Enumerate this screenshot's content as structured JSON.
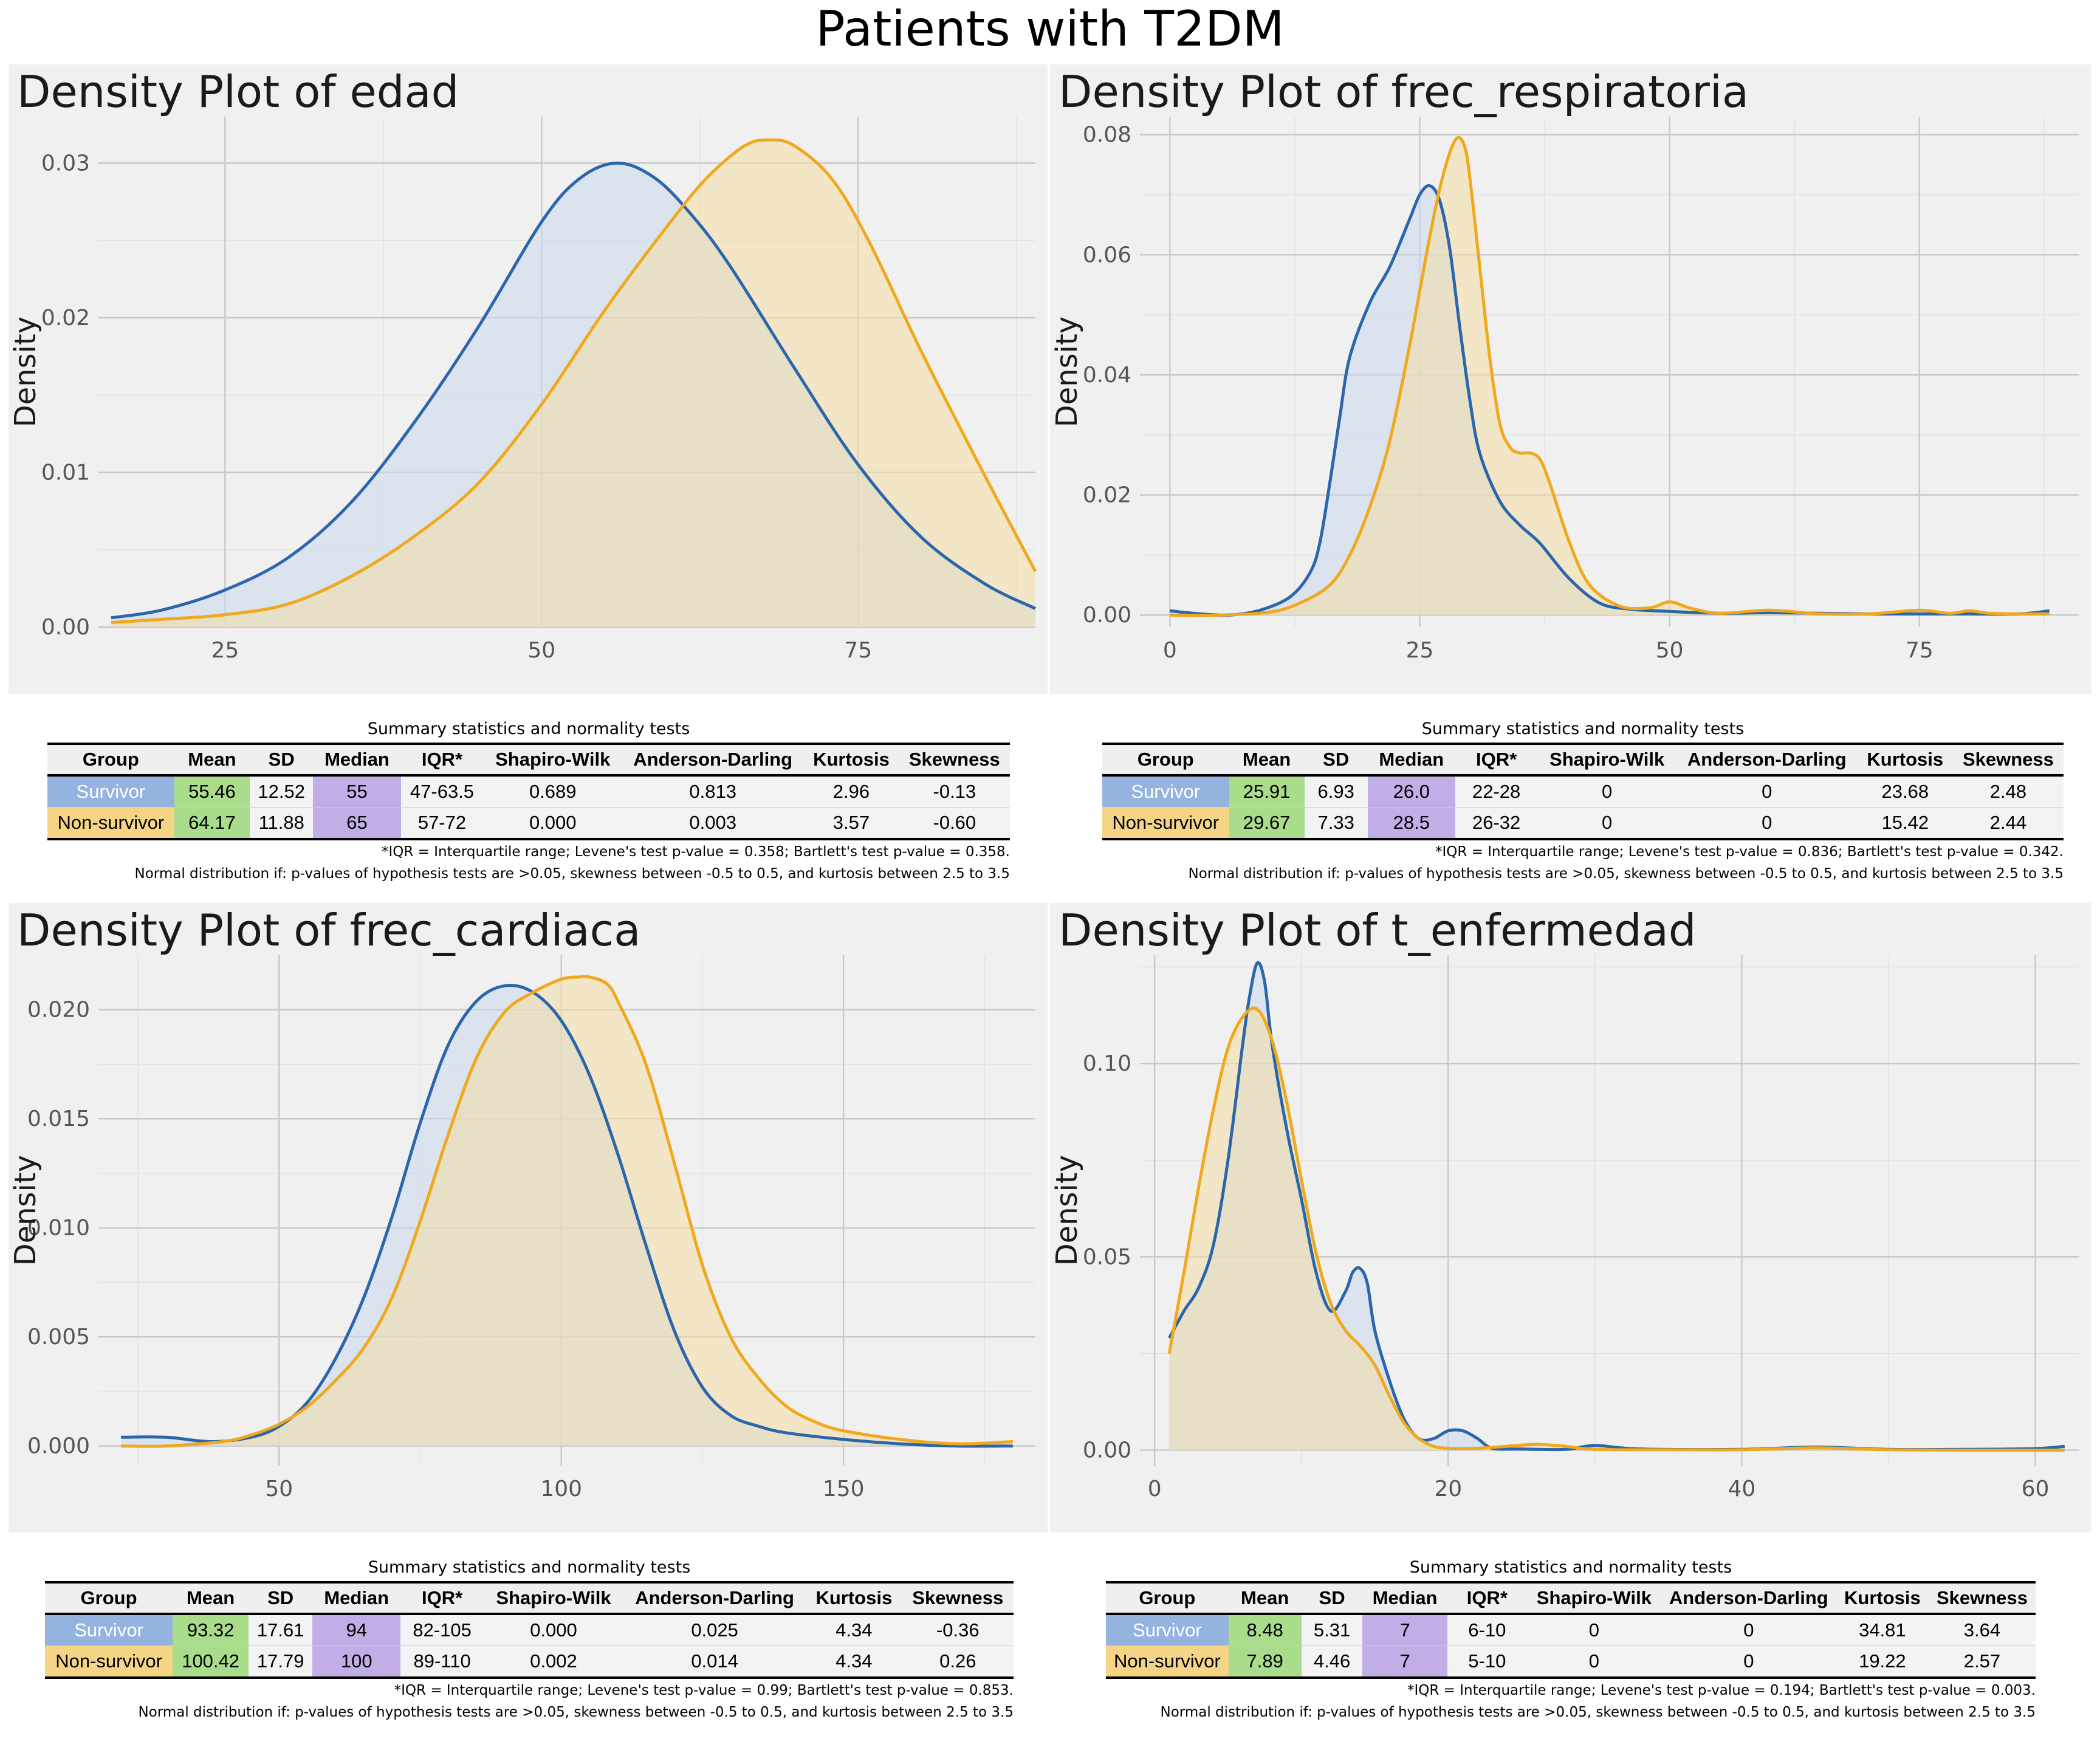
{
  "main_title": "Patients with T2DM",
  "colors": {
    "survivor": "#2b66ad",
    "non_survivor": "#f0a81c",
    "survivor_fill": "#c9d8ec",
    "non_survivor_fill": "#f4dfa6",
    "group_survivor_bg": "#94b4df",
    "group_non_bg": "#f5d585",
    "mean_bg": "#a9dc8b",
    "median_bg": "#c1aee6"
  },
  "chart_data": [
    {
      "type": "area",
      "title": "Density Plot of edad",
      "xlabel": "",
      "ylabel": "Density",
      "xlim": [
        15,
        89
      ],
      "ylim": [
        0,
        0.033
      ],
      "xticks": [
        25,
        50,
        75
      ],
      "yticks": [
        0.0,
        0.01,
        0.02,
        0.03
      ],
      "ytick_labels": [
        "0.00",
        "0.01",
        "0.02",
        "0.03"
      ],
      "grid": true,
      "series": [
        {
          "name": "Survivor",
          "x": [
            16,
            20,
            25,
            30,
            35,
            40,
            45,
            50,
            53,
            56,
            59,
            62,
            65,
            70,
            75,
            80,
            85,
            89
          ],
          "y": [
            0.0006,
            0.0011,
            0.0024,
            0.0045,
            0.0081,
            0.0133,
            0.0194,
            0.0262,
            0.029,
            0.03,
            0.029,
            0.0265,
            0.0232,
            0.0167,
            0.0105,
            0.0058,
            0.0028,
            0.0012
          ]
        },
        {
          "name": "Non-survivor",
          "x": [
            16,
            20,
            25,
            30,
            35,
            40,
            45,
            50,
            55,
            60,
            63,
            66,
            68,
            70,
            73,
            76,
            80,
            85,
            89
          ],
          "y": [
            0.0003,
            0.0005,
            0.0008,
            0.0015,
            0.0033,
            0.0059,
            0.0093,
            0.0144,
            0.0205,
            0.026,
            0.029,
            0.0311,
            0.0315,
            0.0311,
            0.0289,
            0.0247,
            0.0178,
            0.0098,
            0.0036
          ]
        }
      ]
    },
    {
      "type": "area",
      "title": "Density Plot of frec_respiratoria",
      "xlabel": "",
      "ylabel": "Density",
      "xlim": [
        -3,
        91
      ],
      "ylim": [
        -0.002,
        0.083
      ],
      "xticks": [
        0,
        25,
        50,
        75
      ],
      "yticks": [
        0.0,
        0.02,
        0.04,
        0.06,
        0.08
      ],
      "ytick_labels": [
        "0.00",
        "0.02",
        "0.04",
        "0.06",
        "0.08"
      ],
      "grid": true,
      "series": [
        {
          "name": "Survivor",
          "x": [
            0,
            3,
            6,
            9,
            12,
            14,
            15,
            16,
            17,
            18,
            20,
            22,
            24,
            25,
            26,
            27,
            28,
            29,
            30,
            31,
            33,
            35,
            37,
            40,
            43,
            46,
            50,
            55,
            60,
            65,
            70,
            75,
            80,
            85,
            88
          ],
          "y": [
            0.0007,
            0.0002,
            0.0,
            0.0008,
            0.003,
            0.007,
            0.012,
            0.022,
            0.033,
            0.043,
            0.052,
            0.058,
            0.066,
            0.07,
            0.0715,
            0.069,
            0.061,
            0.048,
            0.036,
            0.027,
            0.019,
            0.015,
            0.012,
            0.006,
            0.002,
            0.001,
            0.0006,
            0.0003,
            0.0004,
            0.0003,
            0.0002,
            0.0002,
            0.0002,
            0.0002,
            0.0007
          ]
        },
        {
          "name": "Non-survivor",
          "x": [
            0,
            5,
            10,
            13,
            16,
            18,
            20,
            22,
            24,
            25,
            26,
            27,
            28,
            28.8,
            29.5,
            30,
            31,
            32,
            33,
            34,
            35,
            36,
            37,
            38,
            40,
            42,
            45,
            48,
            50,
            52,
            55,
            60,
            65,
            70,
            75,
            78,
            80,
            82,
            85,
            88
          ],
          "y": [
            0.0,
            0.0,
            0.0005,
            0.002,
            0.005,
            0.01,
            0.018,
            0.029,
            0.045,
            0.054,
            0.063,
            0.071,
            0.077,
            0.0795,
            0.078,
            0.073,
            0.058,
            0.043,
            0.032,
            0.028,
            0.027,
            0.027,
            0.026,
            0.022,
            0.012,
            0.005,
            0.0015,
            0.0012,
            0.0022,
            0.0012,
            0.0003,
            0.0008,
            0.0002,
            0.0002,
            0.0008,
            0.0003,
            0.0007,
            0.0003,
            0.0002,
            0.0002
          ]
        }
      ]
    },
    {
      "type": "area",
      "title": "Density Plot of frec_cardiaca",
      "xlabel": "",
      "ylabel": "Density",
      "xlim": [
        18,
        184
      ],
      "ylim": [
        -0.0009,
        0.0225
      ],
      "xticks": [
        50,
        100,
        150
      ],
      "yticks": [
        0.0,
        0.005,
        0.01,
        0.015,
        0.02
      ],
      "ytick_labels": [
        "0.000",
        "0.005",
        "0.010",
        "0.015",
        "0.020"
      ],
      "grid": true,
      "series": [
        {
          "name": "Survivor",
          "x": [
            22,
            30,
            38,
            45,
            50,
            55,
            60,
            65,
            70,
            75,
            80,
            85,
            90,
            95,
            100,
            105,
            110,
            115,
            120,
            125,
            130,
            135,
            140,
            150,
            160,
            170,
            180
          ],
          "y": [
            0.0004,
            0.0004,
            0.0002,
            0.0004,
            0.0009,
            0.002,
            0.004,
            0.0068,
            0.0105,
            0.0148,
            0.0184,
            0.0204,
            0.0211,
            0.0208,
            0.0195,
            0.017,
            0.0134,
            0.0092,
            0.0053,
            0.0027,
            0.0014,
            0.0009,
            0.0006,
            0.0003,
            0.0001,
            0.0,
            0.0
          ]
        },
        {
          "name": "Non-survivor",
          "x": [
            22,
            30,
            40,
            45,
            50,
            55,
            60,
            65,
            70,
            75,
            80,
            85,
            90,
            95,
            100,
            103,
            105,
            108,
            110,
            115,
            120,
            125,
            130,
            135,
            140,
            145,
            150,
            160,
            170,
            180
          ],
          "y": [
            0.0,
            0.0,
            0.0002,
            0.0005,
            0.001,
            0.0018,
            0.003,
            0.0045,
            0.0068,
            0.0103,
            0.0143,
            0.0178,
            0.0199,
            0.0208,
            0.0214,
            0.0215,
            0.0215,
            0.0212,
            0.0204,
            0.0175,
            0.013,
            0.0083,
            0.005,
            0.0031,
            0.0018,
            0.0011,
            0.0007,
            0.0003,
            0.0001,
            0.0002
          ]
        }
      ]
    },
    {
      "type": "area",
      "title": "Density Plot of t_enfermedad",
      "xlabel": "",
      "ylabel": "Density",
      "xlim": [
        -1,
        63
      ],
      "ylim": [
        -0.004,
        0.128
      ],
      "xticks": [
        0,
        20,
        40,
        60
      ],
      "yticks": [
        0.0,
        0.05,
        0.1
      ],
      "ytick_labels": [
        "0.00",
        "0.05",
        "0.10"
      ],
      "grid": true,
      "series": [
        {
          "name": "Survivor",
          "x": [
            1,
            2,
            3,
            4,
            5,
            6,
            6.5,
            7,
            7.5,
            8,
            9,
            10,
            11,
            12,
            13,
            13.5,
            14,
            14.5,
            15,
            16,
            17,
            18,
            19,
            20,
            21,
            22,
            23,
            25,
            28,
            30,
            33,
            40,
            45,
            50,
            55,
            60,
            62
          ],
          "y": [
            0.029,
            0.036,
            0.042,
            0.053,
            0.075,
            0.105,
            0.118,
            0.126,
            0.121,
            0.105,
            0.083,
            0.065,
            0.046,
            0.036,
            0.041,
            0.046,
            0.047,
            0.043,
            0.031,
            0.018,
            0.008,
            0.003,
            0.003,
            0.005,
            0.005,
            0.003,
            0.0005,
            0.0003,
            0.0002,
            0.0012,
            0.0003,
            0.0002,
            0.0008,
            0.0002,
            0.0002,
            0.0004,
            0.001
          ]
        },
        {
          "name": "Non-survivor",
          "x": [
            1,
            2,
            3,
            4,
            5,
            6,
            7,
            8,
            9,
            10,
            11,
            12,
            13,
            14,
            15,
            16,
            17,
            18,
            19,
            20,
            22,
            24,
            26,
            28,
            30,
            35,
            40,
            45,
            50,
            55,
            60,
            62
          ],
          "y": [
            0.025,
            0.046,
            0.068,
            0.088,
            0.104,
            0.112,
            0.114,
            0.106,
            0.09,
            0.07,
            0.051,
            0.038,
            0.031,
            0.027,
            0.022,
            0.014,
            0.007,
            0.003,
            0.001,
            0.0005,
            0.0005,
            0.001,
            0.0015,
            0.001,
            0.0002,
            0.0001,
            0.0001,
            0.0006,
            0.0001,
            0.0,
            0.0,
            0.0
          ]
        }
      ]
    }
  ],
  "tables": [
    {
      "caption": "Summary statistics and normality tests",
      "headers": [
        "Group",
        "Mean",
        "SD",
        "Median",
        "IQR*",
        "Shapiro-Wilk",
        "Anderson-Darling",
        "Kurtosis",
        "Skewness"
      ],
      "rows": [
        [
          "Survivor",
          "55.46",
          "12.52",
          "55",
          "47-63.5",
          "0.689",
          "0.813",
          "2.96",
          "-0.13"
        ],
        [
          "Non-survivor",
          "64.17",
          "11.88",
          "65",
          "57-72",
          "0.000",
          "0.003",
          "3.57",
          "-0.60"
        ]
      ],
      "note1": "*IQR = Interquartile range; Levene's test p-value = 0.358; Bartlett's test p-value = 0.358.",
      "note2": "Normal distribution if: p-values of hypothesis tests are >0.05, skewness between -0.5 to 0.5, and kurtosis between 2.5 to 3.5"
    },
    {
      "caption": "Summary statistics and normality tests",
      "headers": [
        "Group",
        "Mean",
        "SD",
        "Median",
        "IQR*",
        "Shapiro-Wilk",
        "Anderson-Darling",
        "Kurtosis",
        "Skewness"
      ],
      "rows": [
        [
          "Survivor",
          "25.91",
          "6.93",
          "26.0",
          "22-28",
          "0",
          "0",
          "23.68",
          "2.48"
        ],
        [
          "Non-survivor",
          "29.67",
          "7.33",
          "28.5",
          "26-32",
          "0",
          "0",
          "15.42",
          "2.44"
        ]
      ],
      "note1": "*IQR = Interquartile range; Levene's test p-value = 0.836; Bartlett's test p-value = 0.342.",
      "note2": "Normal distribution if: p-values of hypothesis tests are >0.05, skewness between -0.5 to 0.5, and kurtosis between 2.5 to 3.5"
    },
    {
      "caption": "Summary statistics and normality tests",
      "headers": [
        "Group",
        "Mean",
        "SD",
        "Median",
        "IQR*",
        "Shapiro-Wilk",
        "Anderson-Darling",
        "Kurtosis",
        "Skewness"
      ],
      "rows": [
        [
          "Survivor",
          "93.32",
          "17.61",
          "94",
          "82-105",
          "0.000",
          "0.025",
          "4.34",
          "-0.36"
        ],
        [
          "Non-survivor",
          "100.42",
          "17.79",
          "100",
          "89-110",
          "0.002",
          "0.014",
          "4.34",
          "0.26"
        ]
      ],
      "note1": "*IQR = Interquartile range; Levene's test p-value = 0.99; Bartlett's test p-value = 0.853.",
      "note2": "Normal distribution if: p-values of hypothesis tests are >0.05, skewness between -0.5 to 0.5, and kurtosis between 2.5 to 3.5"
    },
    {
      "caption": "Summary statistics and normality tests",
      "headers": [
        "Group",
        "Mean",
        "SD",
        "Median",
        "IQR*",
        "Shapiro-Wilk",
        "Anderson-Darling",
        "Kurtosis",
        "Skewness"
      ],
      "rows": [
        [
          "Survivor",
          "8.48",
          "5.31",
          "7",
          "6-10",
          "0",
          "0",
          "34.81",
          "3.64"
        ],
        [
          "Non-survivor",
          "7.89",
          "4.46",
          "7",
          "5-10",
          "0",
          "0",
          "19.22",
          "2.57"
        ]
      ],
      "note1": "*IQR = Interquartile range; Levene's test p-value = 0.194; Bartlett's test p-value = 0.003.",
      "note2": "Normal distribution if: p-values of hypothesis tests are >0.05, skewness between -0.5 to 0.5, and kurtosis between 2.5 to 3.5"
    }
  ]
}
